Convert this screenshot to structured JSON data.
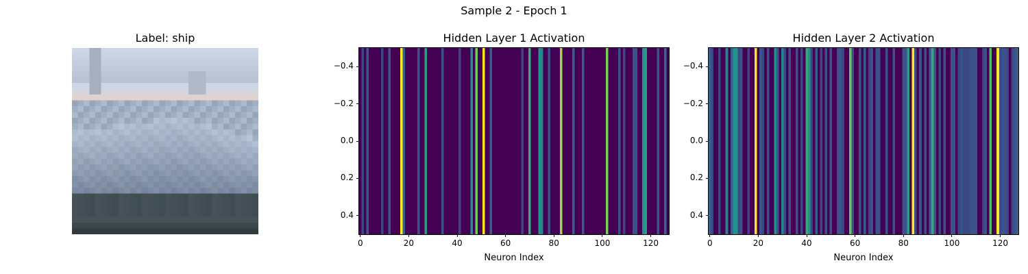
{
  "figure": {
    "suptitle": "Sample 2 - Epoch 1"
  },
  "image_panel": {
    "title": "Label: ship",
    "description_colors": {
      "sky": "#cfd6e2",
      "horizon": "#e9d1c8",
      "hull": "#b8c4d8",
      "dark": "#2f3b40"
    }
  },
  "colormap": "viridis",
  "chart_data": [
    {
      "type": "heatmap",
      "title": "Hidden Layer 1 Activation",
      "xlabel": "Neuron Index",
      "ylabel": "",
      "xlim": [
        -0.5,
        127.5
      ],
      "ylim": [
        0.5,
        -0.5
      ],
      "xticks": [
        0,
        20,
        40,
        60,
        80,
        100,
        120
      ],
      "yticks": [
        -0.4,
        -0.2,
        0.0,
        0.2,
        0.4
      ],
      "xtick_labels": [
        "0",
        "20",
        "40",
        "60",
        "80",
        "100",
        "120"
      ],
      "ytick_labels": [
        "−0.4",
        "−0.2",
        "0.0",
        "0.2",
        "0.4"
      ],
      "values": [
        0.0,
        0.22,
        0.0,
        0.28,
        0.0,
        0.0,
        0.0,
        0.0,
        0.0,
        0.22,
        0.0,
        0.0,
        0.26,
        0.0,
        0.0,
        0.0,
        0.0,
        1.0,
        0.32,
        0.0,
        0.0,
        0.0,
        0.0,
        0.0,
        0.25,
        0.0,
        0.0,
        0.55,
        0.0,
        0.0,
        0.0,
        0.0,
        0.0,
        0.0,
        0.25,
        0.0,
        0.0,
        0.0,
        0.0,
        0.0,
        0.0,
        0.22,
        0.0,
        0.0,
        0.0,
        0.0,
        0.5,
        0.0,
        0.78,
        0.0,
        0.0,
        1.0,
        0.0,
        0.0,
        0.3,
        0.0,
        0.0,
        0.0,
        0.0,
        0.0,
        0.0,
        0.0,
        0.0,
        0.0,
        0.0,
        0.0,
        0.0,
        0.22,
        0.0,
        0.0,
        0.6,
        0.0,
        0.0,
        0.0,
        0.5,
        0.45,
        0.0,
        0.0,
        0.25,
        0.0,
        0.0,
        0.0,
        0.0,
        0.85,
        0.0,
        0.0,
        0.0,
        0.0,
        0.3,
        0.0,
        0.0,
        0.0,
        0.28,
        0.0,
        0.0,
        0.0,
        0.0,
        0.0,
        0.0,
        0.0,
        0.0,
        0.0,
        0.8,
        0.0,
        0.0,
        0.0,
        0.0,
        0.25,
        0.0,
        0.22,
        0.0,
        0.0,
        0.0,
        0.25,
        0.25,
        0.0,
        0.0,
        0.5,
        0.55,
        0.0,
        0.0,
        0.0,
        0.0,
        0.25,
        0.0,
        0.0,
        0.35,
        0.0
      ]
    },
    {
      "type": "heatmap",
      "title": "Hidden Layer 2 Activation",
      "xlabel": "Neuron Index",
      "ylabel": "",
      "xlim": [
        -0.5,
        127.5
      ],
      "ylim": [
        0.5,
        -0.5
      ],
      "xticks": [
        0,
        20,
        40,
        60,
        80,
        100,
        120
      ],
      "yticks": [
        -0.4,
        -0.2,
        0.0,
        0.2,
        0.4
      ],
      "xtick_labels": [
        "0",
        "20",
        "40",
        "60",
        "80",
        "100",
        "120"
      ],
      "ytick_labels": [
        "−0.4",
        "−0.2",
        "0.0",
        "0.2",
        "0.4"
      ],
      "values": [
        0.3,
        0.22,
        0.0,
        0.0,
        0.22,
        0.0,
        0.0,
        0.45,
        0.0,
        0.3,
        0.5,
        0.5,
        0.22,
        0.25,
        0.0,
        0.0,
        0.22,
        0.0,
        0.0,
        1.0,
        0.0,
        0.25,
        0.22,
        0.0,
        0.25,
        0.0,
        0.0,
        0.5,
        0.25,
        0.0,
        0.45,
        0.22,
        0.0,
        0.25,
        0.0,
        0.0,
        0.25,
        0.0,
        0.22,
        0.0,
        0.6,
        0.5,
        0.22,
        0.0,
        0.3,
        0.0,
        0.22,
        0.0,
        0.25,
        0.0,
        0.25,
        0.0,
        0.0,
        0.25,
        0.25,
        0.22,
        0.0,
        0.0,
        0.75,
        0.25,
        0.0,
        0.0,
        0.25,
        0.0,
        0.3,
        0.0,
        0.22,
        0.25,
        0.0,
        0.25,
        0.25,
        0.0,
        0.0,
        0.25,
        0.0,
        0.0,
        0.25,
        0.0,
        0.0,
        0.0,
        0.25,
        0.25,
        0.55,
        0.0,
        1.0,
        0.22,
        0.0,
        0.25,
        0.0,
        0.25,
        0.0,
        0.3,
        0.6,
        0.25,
        0.0,
        0.22,
        0.0,
        0.25,
        0.0,
        0.0,
        0.25,
        0.25,
        0.0,
        0.22,
        0.25,
        0.22,
        0.22,
        0.22,
        0.25,
        0.25,
        0.25,
        0.0,
        0.0,
        0.22,
        0.25,
        0.0,
        0.7,
        0.0,
        0.0,
        1.0,
        0.22,
        0.25,
        0.25,
        0.22,
        0.0,
        0.22,
        0.25,
        0.3
      ]
    }
  ]
}
